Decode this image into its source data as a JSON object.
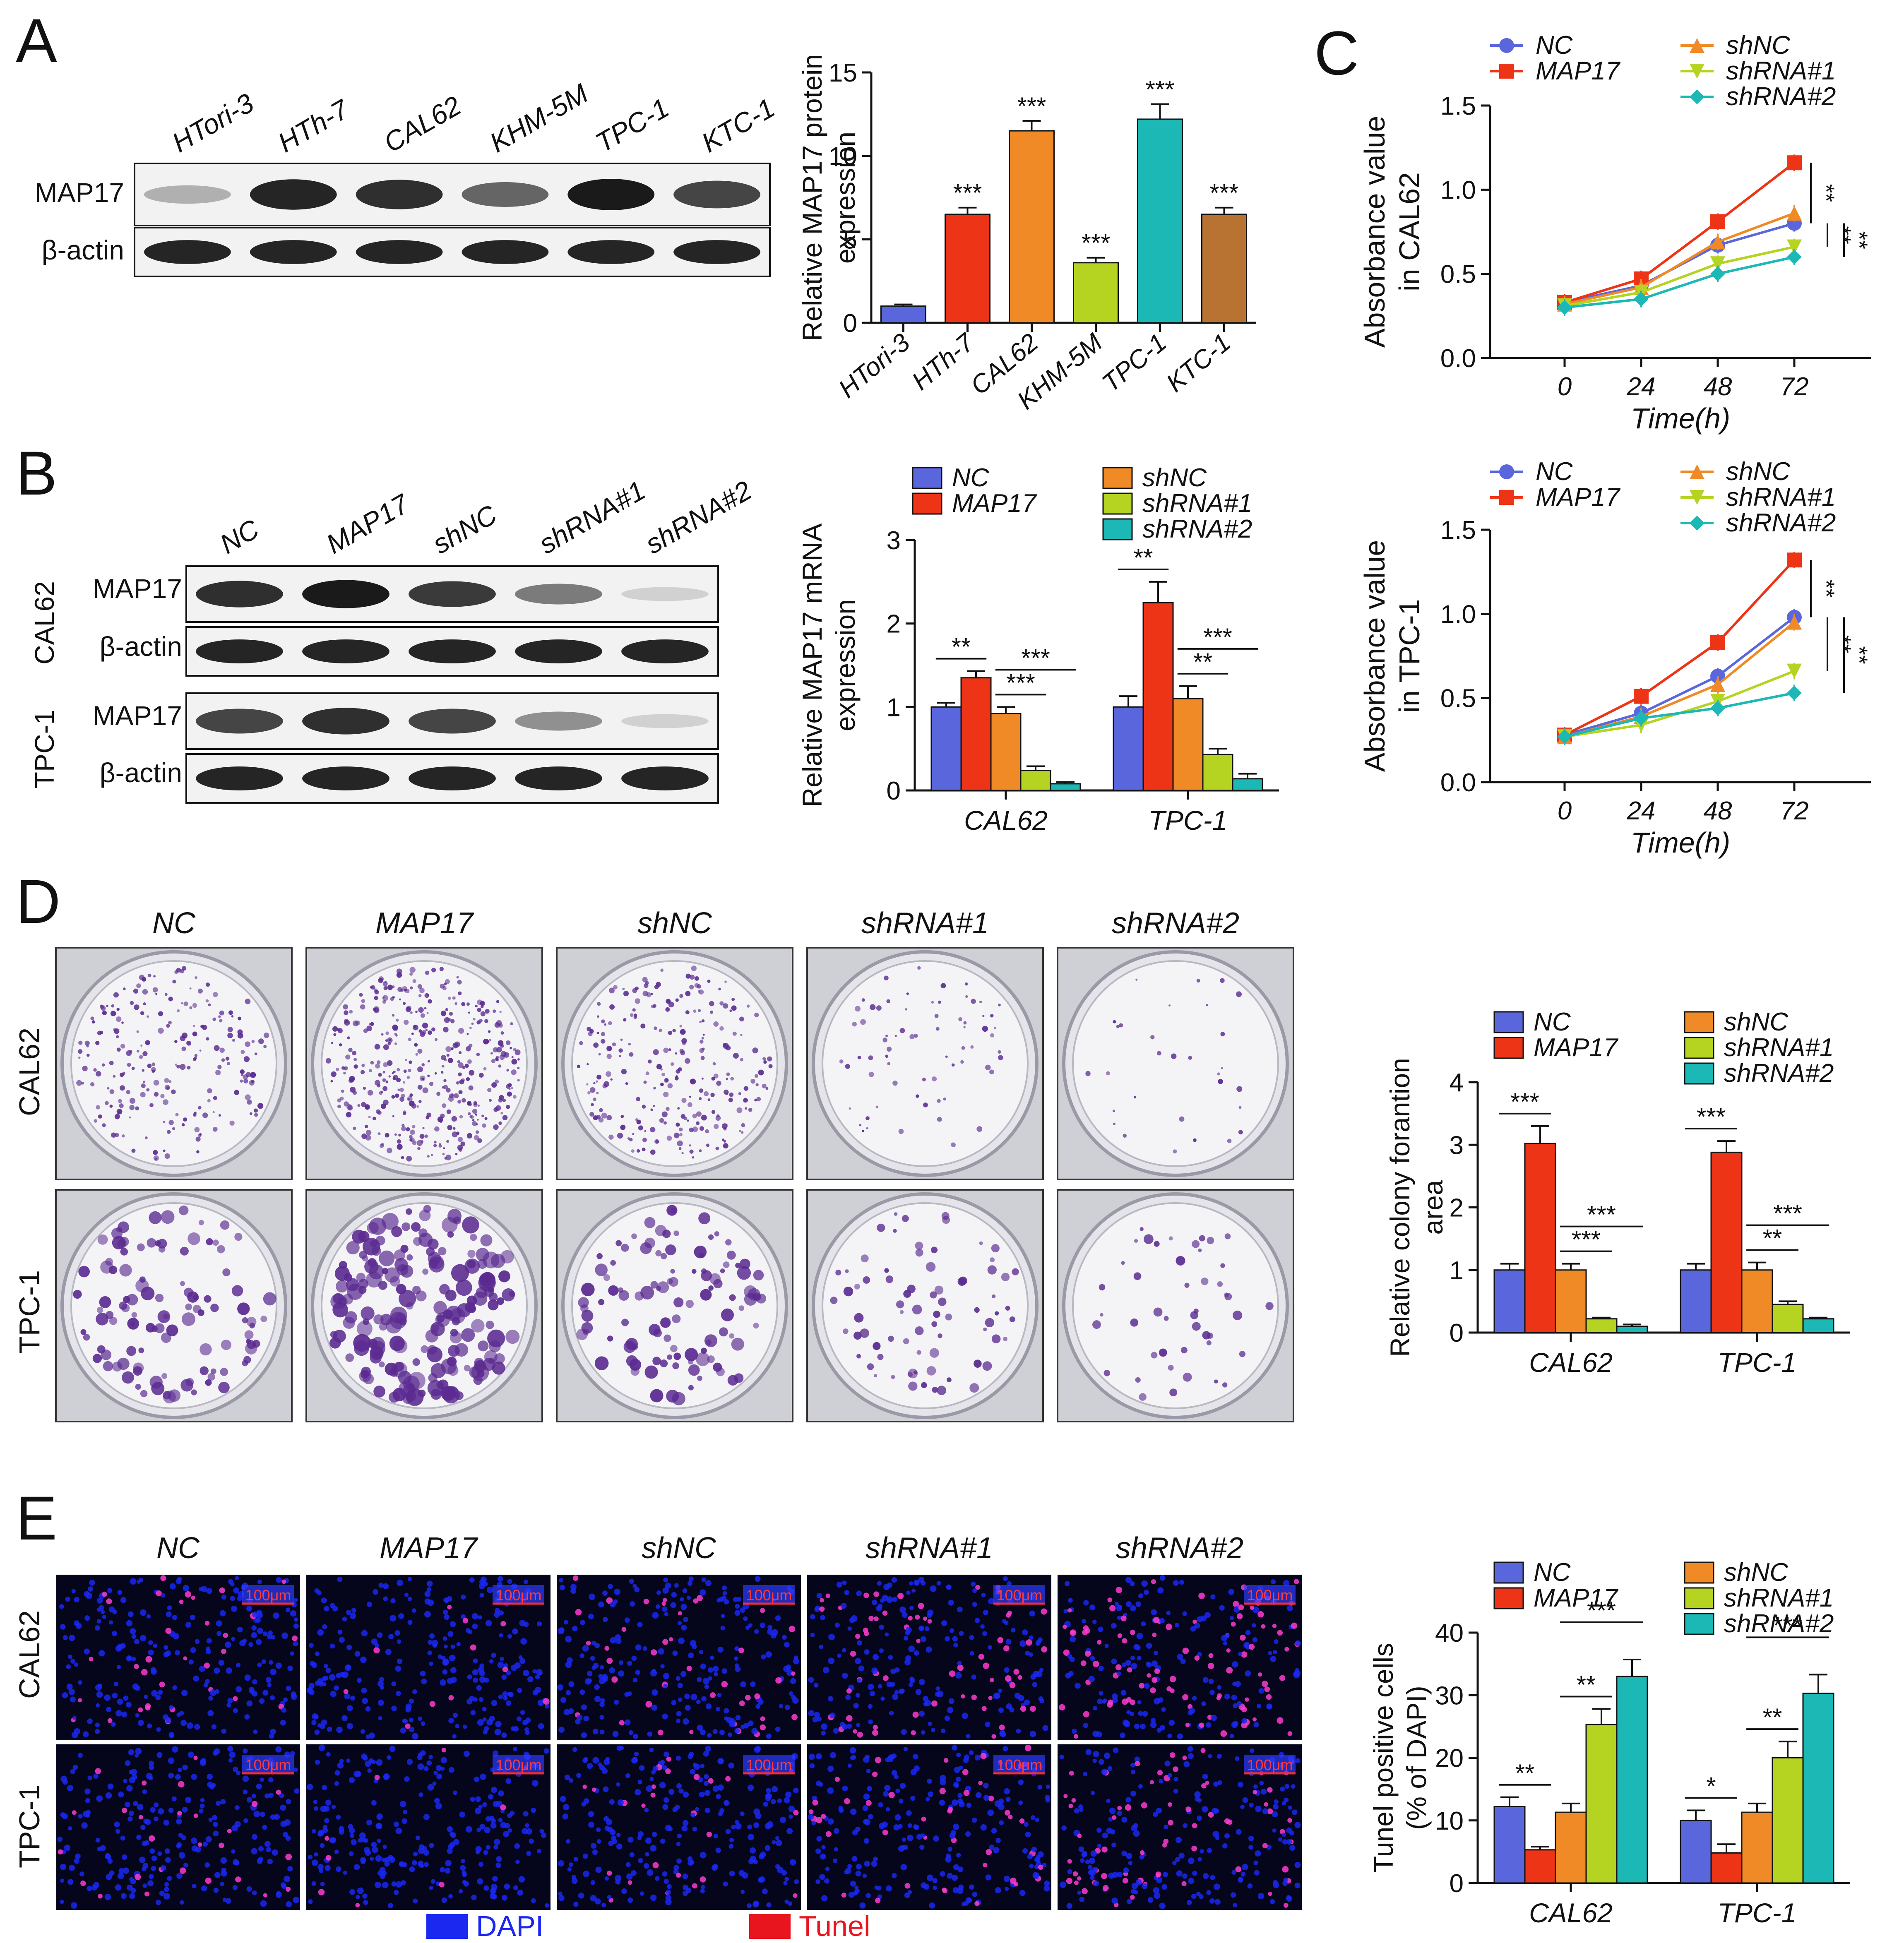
{
  "colors": {
    "NC": "#5a67dc",
    "MAP17": "#ee3416",
    "shNC": "#f08a26",
    "shRNA1": "#b5d321",
    "shRNA2": "#1bb8b5",
    "cl0": "#5a67dc",
    "cl1": "#ee3416",
    "cl2": "#f08a26",
    "cl3": "#b5d321",
    "cl4": "#1bb8b5",
    "cl5": "#b87333",
    "dapi": "#1a28f0",
    "tunel": "#e8141e",
    "well_crystal": "#5b2b91"
  },
  "panels": {
    "A": "A",
    "B": "B",
    "C": "C",
    "D": "D",
    "E": "E"
  },
  "groups": [
    "NC",
    "MAP17",
    "shNC",
    "shRNA#1",
    "shRNA#2"
  ],
  "panelA": {
    "lanes": [
      "HTori-3",
      "HTh-7",
      "CAL62",
      "KHM-5M",
      "TPC-1",
      "KTC-1"
    ],
    "rows": [
      "MAP17",
      "β-actin"
    ],
    "band_intensity_MAP17": [
      0.25,
      0.9,
      0.85,
      0.6,
      0.95,
      0.75
    ],
    "band_intensity_actin": [
      0.9,
      0.9,
      0.9,
      0.9,
      0.9,
      0.9
    ]
  },
  "panelB": {
    "cell_lines": [
      "CAL62",
      "TPC-1"
    ],
    "rows": [
      "MAP17",
      "β-actin"
    ],
    "band_intensity_CAL62": [
      0.85,
      0.95,
      0.8,
      0.5,
      0.1
    ],
    "band_intensity_TPC1": [
      0.75,
      0.85,
      0.75,
      0.4,
      0.1
    ]
  },
  "panelD": {
    "rows": [
      "CAL62",
      "TPC-1"
    ],
    "colony_density_CAL62": [
      220,
      420,
      260,
      70,
      30
    ],
    "colony_density_TPC1": [
      110,
      200,
      110,
      75,
      45
    ],
    "colony_size_TPC1": [
      14,
      18,
      14,
      10,
      10
    ]
  },
  "panelE": {
    "rows": [
      "CAL62",
      "TPC-1"
    ],
    "scalebar": "100μm",
    "legend": [
      "DAPI",
      "Tunel"
    ],
    "tunel_fraction": [
      0.12,
      0.05,
      0.11,
      0.25,
      0.33
    ]
  },
  "chart_data": [
    {
      "type": "bar",
      "id": "A",
      "categories": [
        "HTori-3",
        "HTh-7",
        "CAL62",
        "KHM-5M",
        "TPC-1",
        "KTC-1"
      ],
      "values": [
        1.0,
        6.5,
        11.5,
        3.6,
        12.2,
        6.5
      ],
      "errors": [
        0.1,
        0.4,
        0.6,
        0.3,
        0.9,
        0.4
      ],
      "sig": [
        "",
        "***",
        "***",
        "***",
        "***",
        "***"
      ],
      "ylabel": [
        "Relative MAP17 protein",
        "expression"
      ],
      "ylim": [
        0,
        15
      ],
      "yticks": [
        0,
        5,
        10,
        15
      ]
    },
    {
      "type": "bar",
      "id": "B",
      "categories": [
        "CAL62",
        "TPC-1"
      ],
      "series": [
        {
          "name": "NC",
          "values": [
            1.0,
            1.0
          ],
          "errors": [
            0.05,
            0.13
          ]
        },
        {
          "name": "MAP17",
          "values": [
            1.35,
            2.25
          ],
          "errors": [
            0.08,
            0.25
          ]
        },
        {
          "name": "shNC",
          "values": [
            0.92,
            1.1
          ],
          "errors": [
            0.08,
            0.15
          ]
        },
        {
          "name": "shRNA#1",
          "values": [
            0.24,
            0.43
          ],
          "errors": [
            0.05,
            0.07
          ]
        },
        {
          "name": "shRNA#2",
          "values": [
            0.08,
            0.14
          ],
          "errors": [
            0.02,
            0.06
          ]
        }
      ],
      "sig": [
        {
          "group": 0,
          "from": 0,
          "to": 1,
          "label": "**",
          "level": 0
        },
        {
          "group": 0,
          "from": 2,
          "to": 3,
          "label": "***",
          "level": 0
        },
        {
          "group": 0,
          "from": 2,
          "to": 4,
          "label": "***",
          "level": 1
        },
        {
          "group": 1,
          "from": 0,
          "to": 1,
          "label": "**",
          "level": 0
        },
        {
          "group": 1,
          "from": 2,
          "to": 3,
          "label": "**",
          "level": 0
        },
        {
          "group": 1,
          "from": 2,
          "to": 4,
          "label": "***",
          "level": 1
        }
      ],
      "ylabel": [
        "Relative MAP17 mRNA",
        "expression"
      ],
      "ylim": [
        0,
        3
      ],
      "yticks": [
        0,
        1,
        2,
        3
      ]
    },
    {
      "type": "line",
      "id": "C-CAL62",
      "x": [
        0,
        24,
        48,
        72
      ],
      "series": [
        {
          "name": "NC",
          "values": [
            0.33,
            0.43,
            0.67,
            0.8
          ],
          "marker": "circle"
        },
        {
          "name": "MAP17",
          "values": [
            0.33,
            0.47,
            0.81,
            1.16
          ],
          "marker": "square"
        },
        {
          "name": "shNC",
          "values": [
            0.32,
            0.42,
            0.69,
            0.86
          ],
          "marker": "triangle-up"
        },
        {
          "name": "shRNA#1",
          "values": [
            0.31,
            0.39,
            0.56,
            0.66
          ],
          "marker": "triangle-down"
        },
        {
          "name": "shRNA#2",
          "values": [
            0.3,
            0.35,
            0.5,
            0.6
          ],
          "marker": "diamond"
        }
      ],
      "brackets": [
        "**",
        "**",
        "**"
      ],
      "xlabel": "Time(h)",
      "ylabel": [
        "Absorbance value",
        "in CAL62"
      ],
      "ylim": [
        0,
        1.5
      ],
      "yticks": [
        "0.0",
        "0.5",
        "1.0",
        "1.5"
      ]
    },
    {
      "type": "line",
      "id": "C-TPC1",
      "x": [
        0,
        24,
        48,
        72
      ],
      "series": [
        {
          "name": "NC",
          "values": [
            0.28,
            0.41,
            0.63,
            0.98
          ],
          "marker": "circle"
        },
        {
          "name": "MAP17",
          "values": [
            0.28,
            0.51,
            0.83,
            1.32
          ],
          "marker": "square"
        },
        {
          "name": "shNC",
          "values": [
            0.27,
            0.39,
            0.58,
            0.95
          ],
          "marker": "triangle-up"
        },
        {
          "name": "shRNA#1",
          "values": [
            0.27,
            0.34,
            0.48,
            0.66
          ],
          "marker": "triangle-down"
        },
        {
          "name": "shRNA#2",
          "values": [
            0.27,
            0.38,
            0.44,
            0.53
          ],
          "marker": "diamond"
        }
      ],
      "brackets": [
        "**",
        "**",
        "**"
      ],
      "xlabel": "Time(h)",
      "ylabel": [
        "Absorbance value",
        "in TPC-1"
      ],
      "ylim": [
        0,
        1.5
      ],
      "yticks": [
        "0.0",
        "0.5",
        "1.0",
        "1.5"
      ]
    },
    {
      "type": "bar",
      "id": "D",
      "categories": [
        "CAL62",
        "TPC-1"
      ],
      "series": [
        {
          "name": "NC",
          "values": [
            1.0,
            1.0
          ],
          "errors": [
            0.1,
            0.1
          ]
        },
        {
          "name": "MAP17",
          "values": [
            3.02,
            2.88
          ],
          "errors": [
            0.28,
            0.18
          ]
        },
        {
          "name": "shNC",
          "values": [
            1.0,
            1.0
          ],
          "errors": [
            0.1,
            0.12
          ]
        },
        {
          "name": "shRNA#1",
          "values": [
            0.22,
            0.45
          ],
          "errors": [
            0.02,
            0.05
          ]
        },
        {
          "name": "shRNA#2",
          "values": [
            0.1,
            0.22
          ],
          "errors": [
            0.03,
            0.02
          ]
        }
      ],
      "sig": [
        {
          "group": 0,
          "from": 0,
          "to": 1,
          "label": "***",
          "level": 0
        },
        {
          "group": 0,
          "from": 2,
          "to": 3,
          "label": "***",
          "level": 0
        },
        {
          "group": 0,
          "from": 2,
          "to": 4,
          "label": "***",
          "level": 1
        },
        {
          "group": 1,
          "from": 0,
          "to": 1,
          "label": "***",
          "level": 0
        },
        {
          "group": 1,
          "from": 2,
          "to": 3,
          "label": "**",
          "level": 0
        },
        {
          "group": 1,
          "from": 2,
          "to": 4,
          "label": "***",
          "level": 1
        }
      ],
      "ylabel": [
        "Relative colony forantion",
        "area"
      ],
      "ylim": [
        0,
        4
      ],
      "yticks": [
        0,
        1,
        2,
        3,
        4
      ]
    },
    {
      "type": "bar",
      "id": "E",
      "categories": [
        "CAL62",
        "TPC-1"
      ],
      "series": [
        {
          "name": "NC",
          "values": [
            12.2,
            10.0
          ],
          "errors": [
            1.5,
            1.6
          ]
        },
        {
          "name": "MAP17",
          "values": [
            5.3,
            4.8
          ],
          "errors": [
            0.5,
            1.4
          ]
        },
        {
          "name": "shNC",
          "values": [
            11.3,
            11.3
          ],
          "errors": [
            1.4,
            1.4
          ]
        },
        {
          "name": "shRNA#1",
          "values": [
            25.3,
            20.0
          ],
          "errors": [
            2.5,
            2.6
          ]
        },
        {
          "name": "shRNA#2",
          "values": [
            33.0,
            30.3
          ],
          "errors": [
            2.7,
            3.0
          ]
        }
      ],
      "sig": [
        {
          "group": 0,
          "from": 0,
          "to": 1,
          "label": "**",
          "level": 0
        },
        {
          "group": 0,
          "from": 2,
          "to": 3,
          "label": "**",
          "level": 0
        },
        {
          "group": 0,
          "from": 2,
          "to": 4,
          "label": "***",
          "level": 1
        },
        {
          "group": 1,
          "from": 0,
          "to": 1,
          "label": "*",
          "level": 0
        },
        {
          "group": 1,
          "from": 2,
          "to": 3,
          "label": "**",
          "level": 0
        },
        {
          "group": 1,
          "from": 2,
          "to": 4,
          "label": "***",
          "level": 1
        }
      ],
      "ylabel": [
        "Tunel positive cells",
        "(% of DAPI)"
      ],
      "ylim": [
        0,
        40
      ],
      "yticks": [
        0,
        10,
        20,
        30,
        40
      ]
    }
  ]
}
